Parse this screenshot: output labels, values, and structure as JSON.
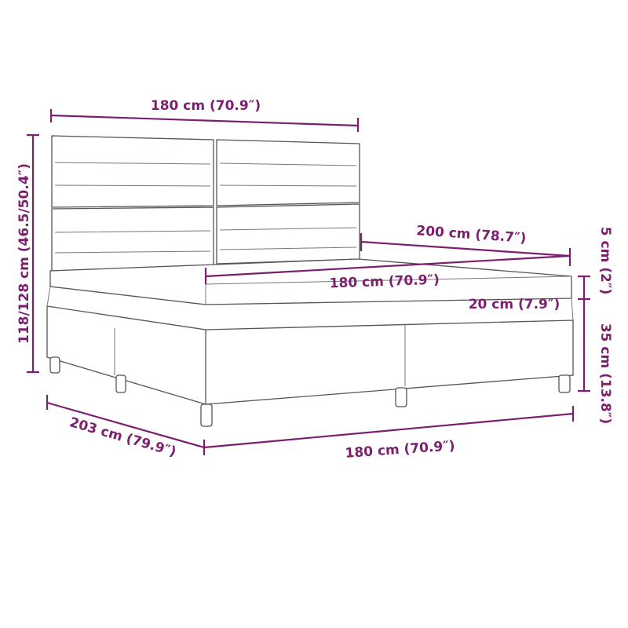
{
  "accent_color": "#7b1f6e",
  "dimensions": {
    "headboard_width": "180 cm (70.9″)",
    "total_height": "118/128 cm (46.5/50.4″)",
    "mattress_length": "200 cm (78.7″)",
    "mattress_width": "180 cm (70.9″)",
    "topper_height": "5 cm (2″)",
    "mattress_height": "20 cm (7.9″)",
    "base_height": "35 cm (13.8″)",
    "total_length": "203 cm (79.9″)",
    "base_width": "180 cm (70.9″)"
  }
}
